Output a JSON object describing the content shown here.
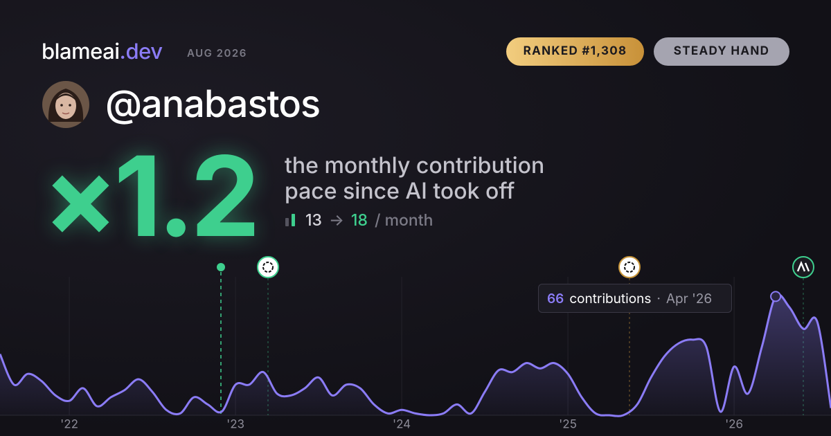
{
  "brand": {
    "name": "blameai",
    "tld": ".dev",
    "date": "AUG 2026"
  },
  "badges": [
    "RANKED #1,308",
    "STEADY HAND"
  ],
  "user": {
    "handle": "@anabastos"
  },
  "multiplier": "×1.2",
  "caption": [
    "the monthly contribution",
    "pace since AI took off"
  ],
  "pace": {
    "before": 13,
    "arrow": "→",
    "after": 18,
    "unit": "/ month"
  },
  "tooltip": {
    "label": "contributions",
    "sep": "·",
    "date": "Apr '26"
  },
  "chart_data": {
    "type": "area",
    "color": "#8b7cf6",
    "x": [
      2021.583,
      2021.667,
      2021.75,
      2021.833,
      2021.917,
      2022,
      2022.083,
      2022.167,
      2022.25,
      2022.333,
      2022.417,
      2022.5,
      2022.583,
      2022.667,
      2022.75,
      2022.833,
      2022.917,
      2023,
      2023.083,
      2023.167,
      2023.25,
      2023.333,
      2023.417,
      2023.5,
      2023.583,
      2023.667,
      2023.75,
      2023.833,
      2023.917,
      2024,
      2024.083,
      2024.167,
      2024.25,
      2024.333,
      2024.417,
      2024.5,
      2024.583,
      2024.667,
      2024.75,
      2024.833,
      2024.917,
      2025,
      2025.083,
      2025.167,
      2025.25,
      2025.333,
      2025.417,
      2025.5,
      2025.583,
      2025.667,
      2025.75,
      2025.833,
      2025.917,
      2026,
      2026.083,
      2026.167,
      2026.25,
      2026.333,
      2026.417,
      2026.5,
      2026.583
    ],
    "values": [
      34,
      17,
      23,
      19,
      11,
      8,
      15,
      5,
      10,
      14,
      20,
      13,
      3,
      1,
      10,
      6,
      2,
      17,
      17,
      24,
      12,
      11,
      15,
      21,
      11,
      17,
      15,
      6,
      1,
      3,
      1,
      0,
      1,
      6,
      1,
      13,
      25,
      24,
      29,
      26,
      29,
      23,
      10,
      1,
      0,
      0,
      6,
      21,
      33,
      40,
      42,
      38,
      2,
      27,
      12,
      38,
      66,
      60,
      48,
      52,
      4
    ],
    "xlim": [
      2021.583,
      2026.583
    ],
    "ylim": [
      0,
      80
    ],
    "xticks": [
      {
        "value": 2022,
        "label": "'22"
      },
      {
        "value": 2023,
        "label": "'23"
      },
      {
        "value": 2024,
        "label": "'24"
      },
      {
        "value": 2025,
        "label": "'25"
      },
      {
        "value": 2026,
        "label": "'26"
      }
    ],
    "grid": true
  }
}
